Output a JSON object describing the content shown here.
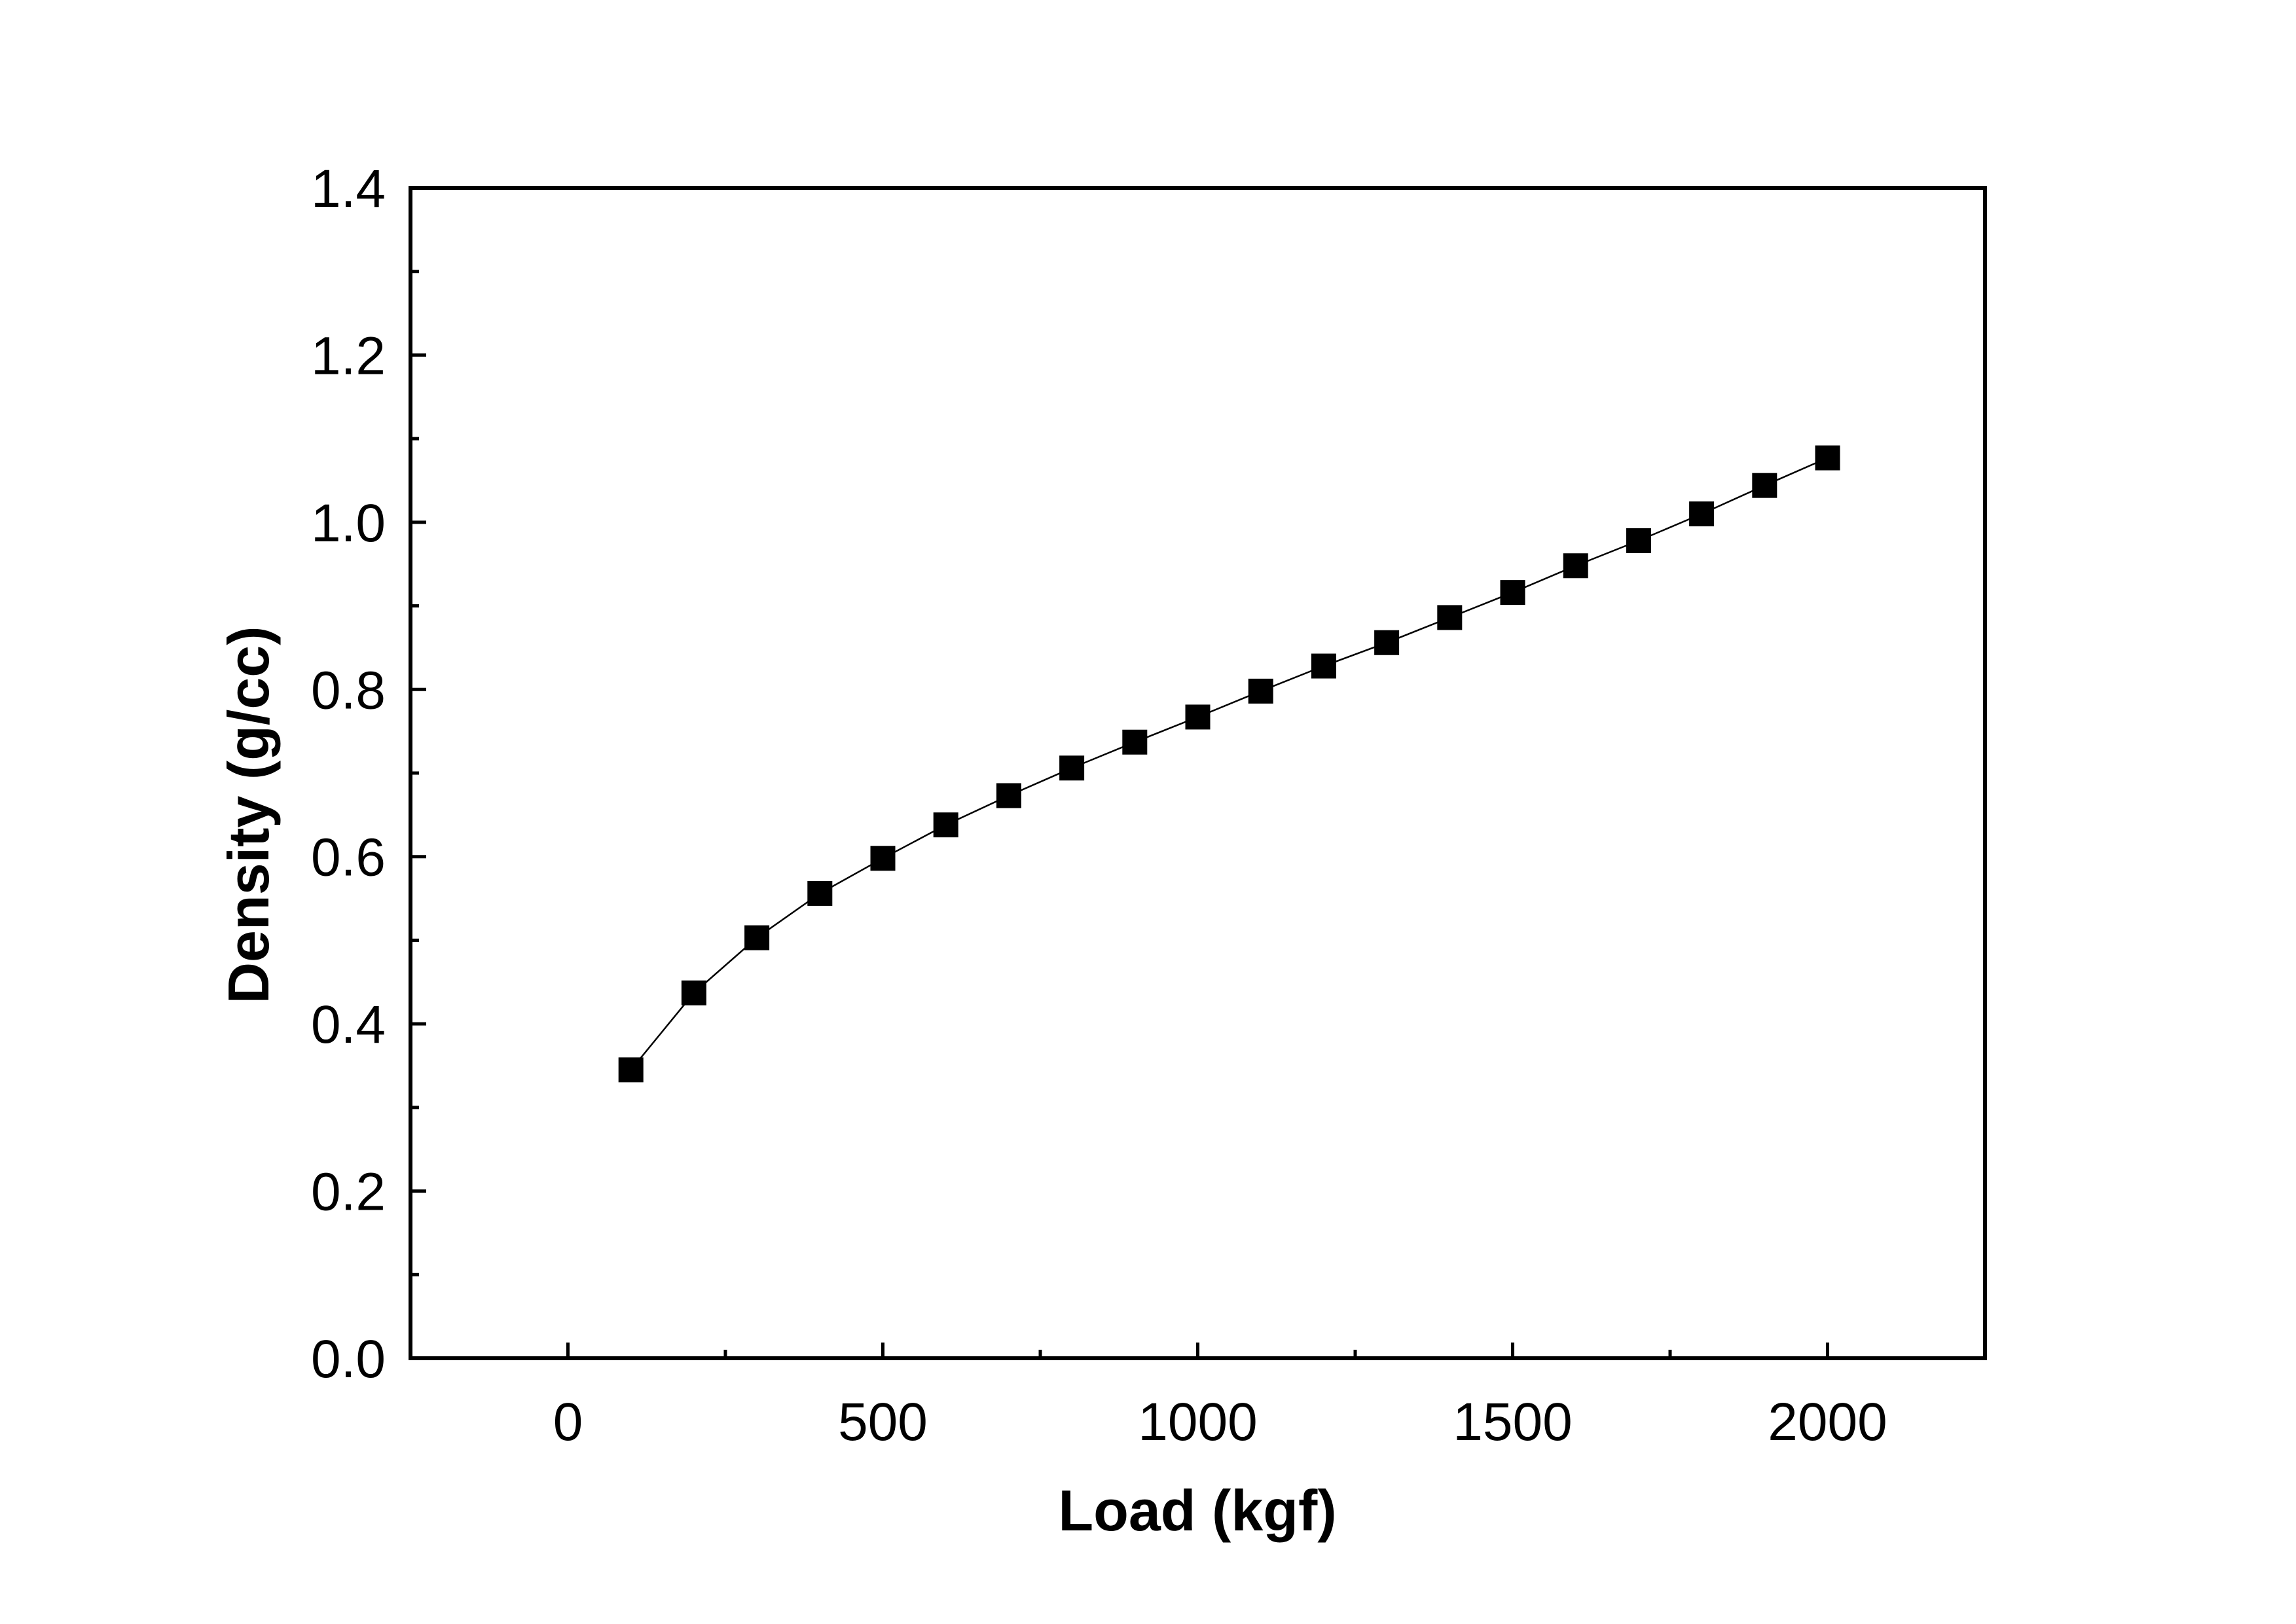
{
  "chart_data": {
    "type": "line",
    "title": "",
    "xlabel": "Load (kgf)",
    "ylabel": "Density (g/cc)",
    "xlim": [
      -250,
      2250
    ],
    "ylim": [
      0.0,
      1.4
    ],
    "x_ticks": [
      0,
      500,
      1000,
      1500,
      2000
    ],
    "x_tick_labels": [
      "0",
      "500",
      "1000",
      "1500",
      "2000"
    ],
    "x_minor_ticks": [
      250,
      750,
      1250,
      1750
    ],
    "y_ticks": [
      0.0,
      0.2,
      0.4,
      0.6,
      0.8,
      1.0,
      1.2,
      1.4
    ],
    "y_tick_labels": [
      "0.0",
      "0.2",
      "0.4",
      "0.6",
      "0.8",
      "1.0",
      "1.2",
      "1.4"
    ],
    "y_minor_ticks": [
      0.1,
      0.3,
      0.5,
      0.7,
      0.9,
      1.1,
      1.3
    ],
    "grid": false,
    "legend": "none",
    "marker": "square",
    "color": "#000000",
    "series": [
      {
        "x": [
          100,
          200,
          300,
          400,
          500,
          600,
          700,
          800,
          900,
          1000,
          1100,
          1200,
          1300,
          1400,
          1500,
          1600,
          1700,
          1800,
          1900,
          2000
        ],
        "y": [
          0.345,
          0.437,
          0.503,
          0.556,
          0.598,
          0.638,
          0.673,
          0.706,
          0.737,
          0.767,
          0.798,
          0.828,
          0.856,
          0.886,
          0.916,
          0.948,
          0.978,
          1.01,
          1.044,
          1.077
        ]
      }
    ]
  }
}
